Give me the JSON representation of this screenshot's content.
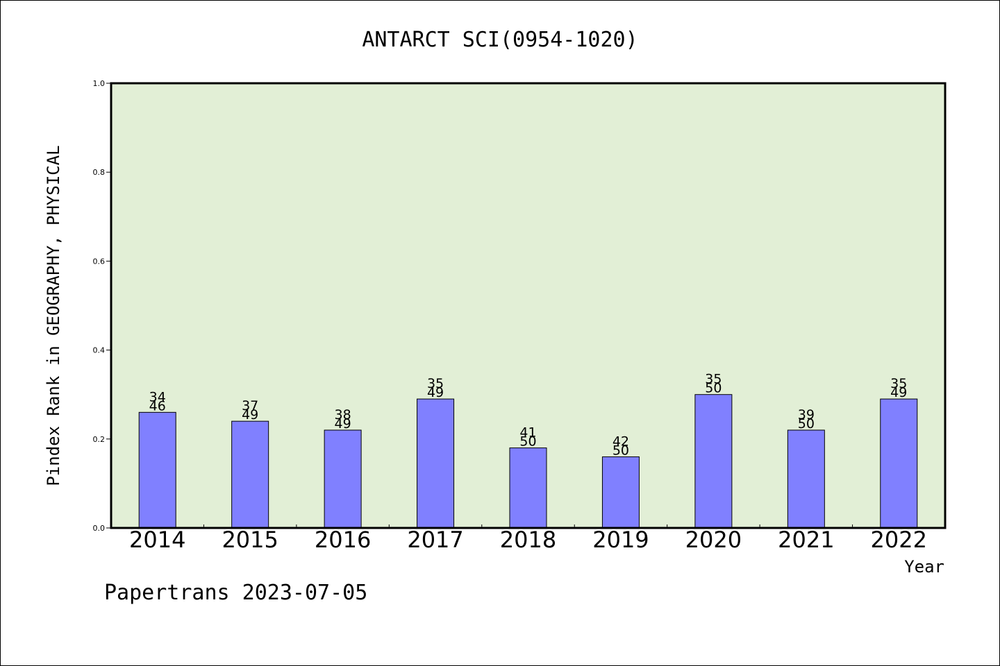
{
  "chart_data": {
    "type": "bar",
    "title": "ANTARCT SCI(0954-1020)",
    "xlabel": "Year",
    "ylabel": "Pindex Rank in GEOGRAPHY, PHYSICAL",
    "ylim": [
      0,
      1.0
    ],
    "yticks": [
      "0.0",
      "0.2",
      "0.4",
      "0.6",
      "0.8",
      "1.0"
    ],
    "ytick_values": [
      0,
      0.2,
      0.4,
      0.6,
      0.8,
      1.0
    ],
    "categories": [
      "2014",
      "2015",
      "2016",
      "2017",
      "2018",
      "2019",
      "2020",
      "2021",
      "2022"
    ],
    "values": [
      0.26,
      0.24,
      0.22,
      0.29,
      0.18,
      0.16,
      0.3,
      0.22,
      0.29
    ],
    "rank_labels": [
      "34",
      "37",
      "38",
      "35",
      "41",
      "42",
      "35",
      "39",
      "35"
    ],
    "total_labels": [
      "46",
      "49",
      "49",
      "49",
      "50",
      "50",
      "50",
      "50",
      "49"
    ],
    "grid": false,
    "colors": {
      "bar": "#8080ff",
      "plot_background": "#e2efd6",
      "axis": "#000000"
    }
  },
  "footer": {
    "credit": "Papertrans 2023-07-05"
  }
}
